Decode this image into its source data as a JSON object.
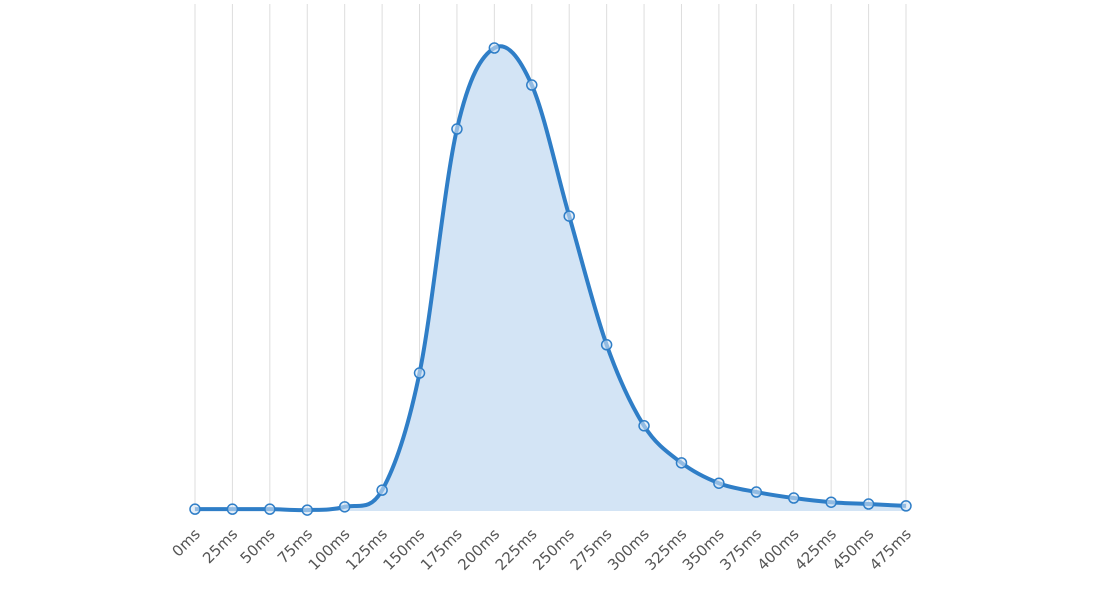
{
  "chart_data": {
    "type": "area",
    "categories": [
      "0ms",
      "25ms",
      "50ms",
      "75ms",
      "100ms",
      "125ms",
      "150ms",
      "175ms",
      "200ms",
      "225ms",
      "250ms",
      "275ms",
      "300ms",
      "325ms",
      "350ms",
      "375ms",
      "400ms",
      "425ms",
      "450ms",
      "475ms"
    ],
    "values": [
      0.4,
      0.4,
      0.4,
      0.2,
      0.9,
      4.5,
      29.8,
      82.5,
      100,
      92,
      63.7,
      35.9,
      18.4,
      10.4,
      6,
      4.1,
      2.8,
      1.9,
      1.5,
      1.1
    ],
    "ylim": [
      0,
      100
    ],
    "color": "#2f7ec7",
    "fill": "#d3e4f5",
    "grid": true
  }
}
